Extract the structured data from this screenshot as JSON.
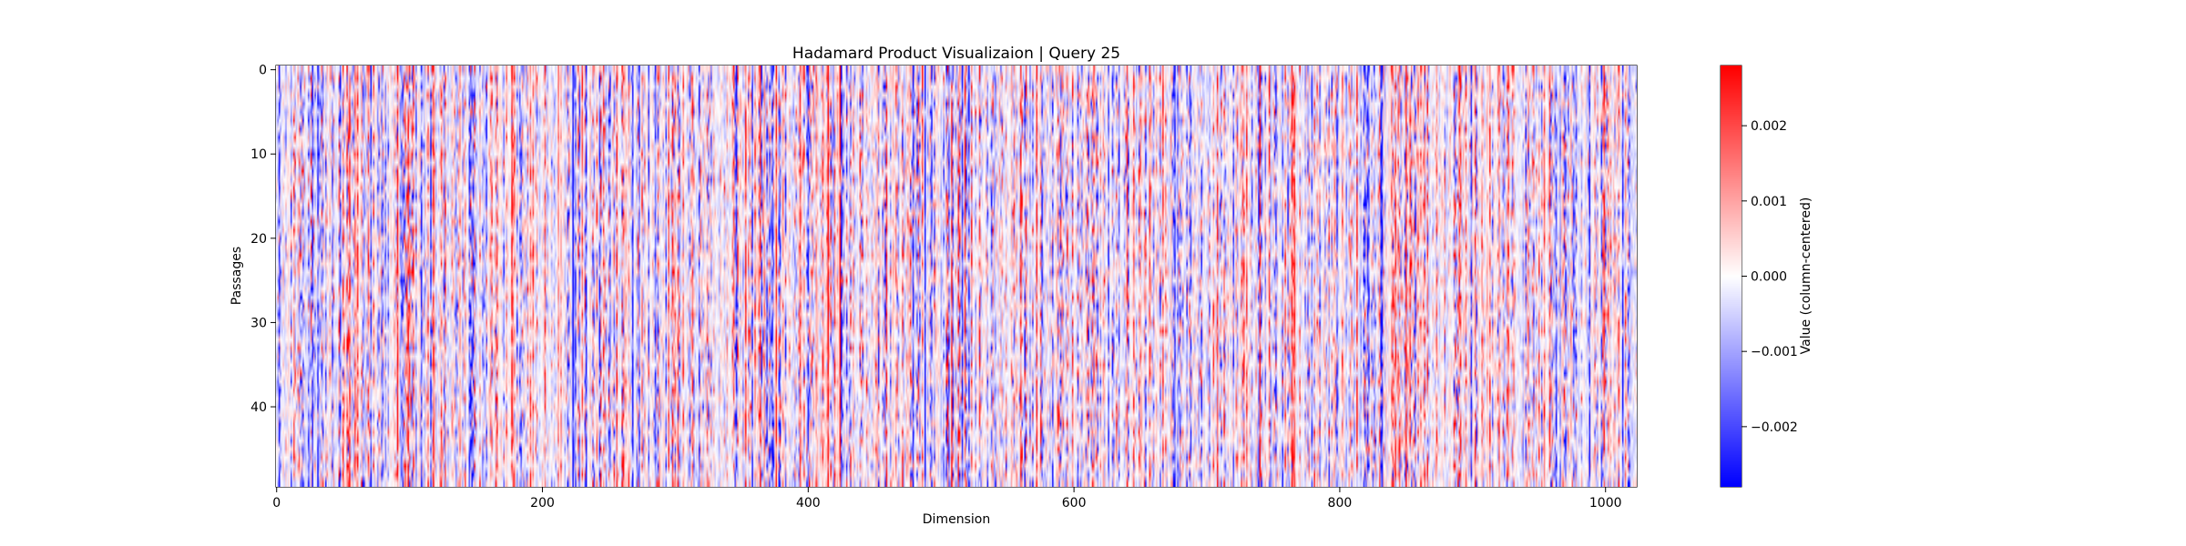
{
  "chart_data": {
    "type": "heatmap",
    "title": "Hadamard Product Visualizaion | Query 25",
    "xlabel": "Dimension",
    "ylabel": "Passages",
    "n_rows": 50,
    "n_cols": 1024,
    "x_ticks": [
      0,
      200,
      400,
      600,
      800,
      1000
    ],
    "x_tick_labels": [
      "0",
      "200",
      "400",
      "600",
      "800",
      "1000"
    ],
    "y_ticks": [
      0,
      10,
      20,
      30,
      40
    ],
    "y_tick_labels": [
      "0",
      "10",
      "20",
      "30",
      "40"
    ],
    "colormap": "bwr",
    "colormap_colors": [
      "#0000ff",
      "#ffffff",
      "#ff0000"
    ],
    "value_range": [
      -0.0028,
      0.0028
    ],
    "colorbar": {
      "label": "Value (column-centered)",
      "ticks": [
        0.002,
        0.001,
        0.0,
        -0.001,
        -0.002
      ],
      "tick_labels": [
        "0.002",
        "0.001",
        "0.000",
        "−0.001",
        "−0.002"
      ]
    },
    "grid": false
  }
}
